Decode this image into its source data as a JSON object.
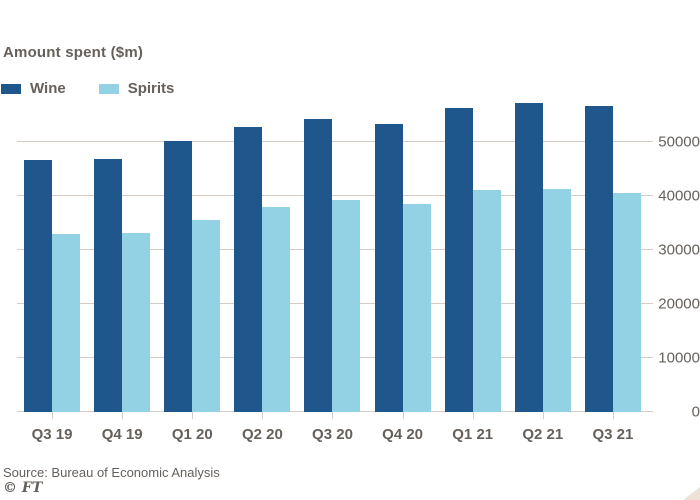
{
  "title": "Amount spent ($m)",
  "footer": {
    "source": "Source: Bureau of Economic Analysis",
    "brand": "© FT"
  },
  "colors": {
    "wine": "#1F568C",
    "spirits": "#93D2E4",
    "gridline": "#D7CCC3",
    "text": "#66605B",
    "corner_mark": "#EEE1D5",
    "background": "#FFFFFF"
  },
  "chart_data": {
    "type": "bar",
    "title": "Amount spent ($m)",
    "categories": [
      "Q3 19",
      "Q4 19",
      "Q1 20",
      "Q2 20",
      "Q3 20",
      "Q4 20",
      "Q1 21",
      "Q2 21",
      "Q3 21"
    ],
    "series": [
      {
        "name": "Wine",
        "color": "#1F568C",
        "values": [
          46600,
          46900,
          50100,
          52800,
          54300,
          53300,
          56300,
          57200,
          56700
        ]
      },
      {
        "name": "Spirits",
        "color": "#93D2E4",
        "values": [
          33000,
          33100,
          35600,
          38000,
          39300,
          38500,
          41100,
          41300,
          40500
        ]
      }
    ],
    "xlabel": "",
    "ylabel": "Amount spent ($m)",
    "yticks": [
      0,
      10000,
      20000,
      30000,
      40000,
      50000
    ],
    "ylim": [
      0,
      50000
    ],
    "grid": true,
    "gridlines_behind_bars": true,
    "legend_position": "top-left",
    "y_axis_side": "right",
    "source": "Source: Bureau of Economic Analysis"
  }
}
